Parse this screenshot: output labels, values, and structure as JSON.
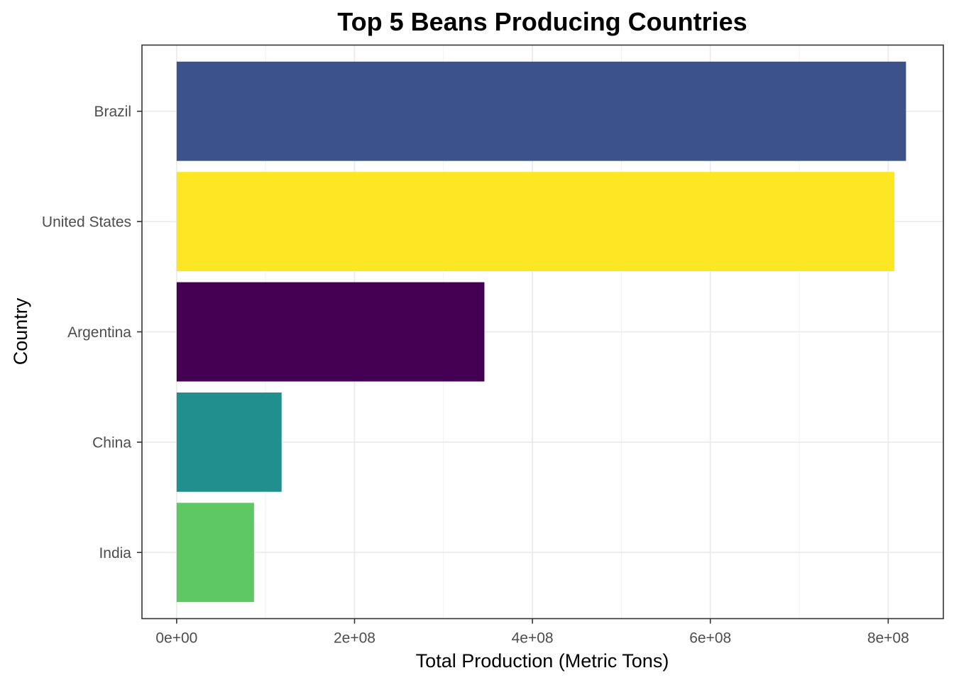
{
  "chart_data": {
    "type": "bar",
    "orientation": "horizontal",
    "title": "Top 5 Beans Producing Countries",
    "xlabel": "Total Production (Metric Tons)",
    "ylabel": "Country",
    "categories": [
      "Brazil",
      "United States",
      "Argentina",
      "China",
      "India"
    ],
    "values": [
      820000000,
      807000000,
      346000000,
      118000000,
      87000000
    ],
    "colors": [
      "#3b528b",
      "#fde725",
      "#440154",
      "#21908c",
      "#5ec962"
    ],
    "xlim": [
      -39000000,
      862000000
    ],
    "x_ticks": [
      0,
      200000000,
      400000000,
      600000000,
      800000000
    ],
    "x_tick_labels": [
      "0e+00",
      "2e+08",
      "4e+08",
      "6e+08",
      "8e+08"
    ],
    "grid": true,
    "legend": "none"
  }
}
